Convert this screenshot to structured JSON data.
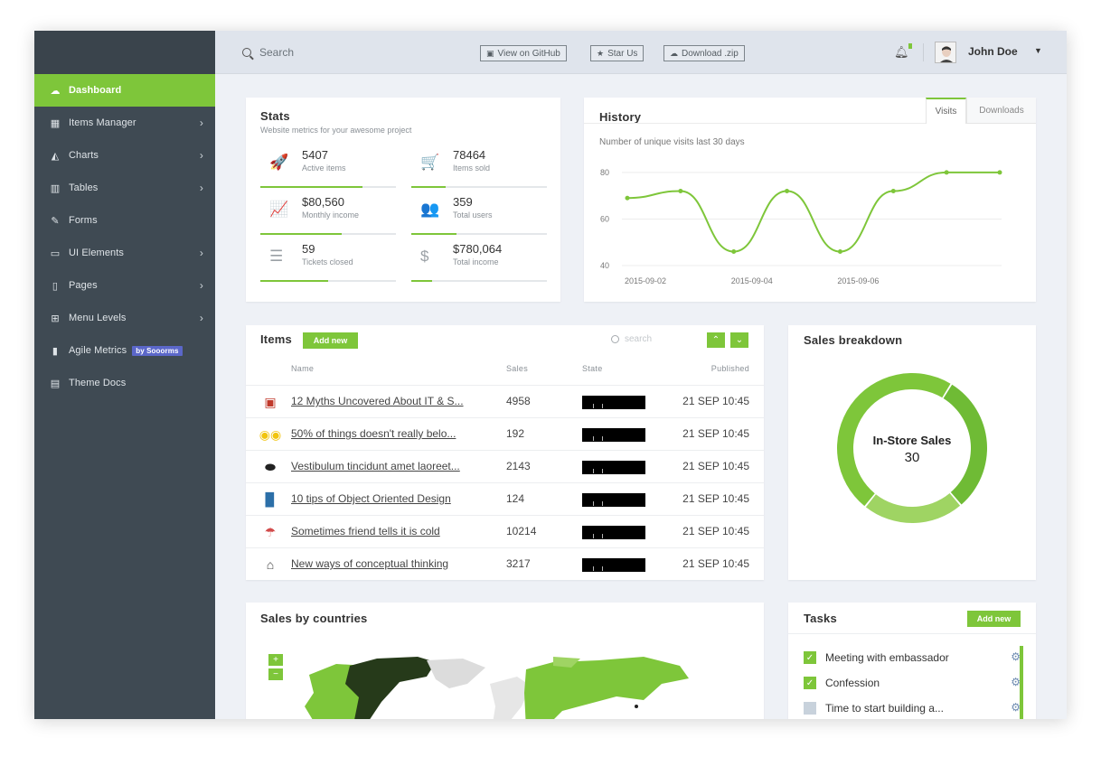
{
  "sidebar": {
    "items": [
      {
        "label": "Dashboard",
        "icon": "dashboard-icon",
        "glyph": "☁",
        "active": true,
        "chevron": ""
      },
      {
        "label": "Items Manager",
        "icon": "grid-icon",
        "glyph": "▦",
        "chevron": "›"
      },
      {
        "label": "Charts",
        "icon": "area-chart-icon",
        "glyph": "◭",
        "chevron": "›"
      },
      {
        "label": "Tables",
        "icon": "table-icon",
        "glyph": "▥",
        "chevron": "›"
      },
      {
        "label": "Forms",
        "icon": "pencil-square-icon",
        "glyph": "✎",
        "chevron": ""
      },
      {
        "label": "UI Elements",
        "icon": "desktop-icon",
        "glyph": "▭",
        "chevron": "›"
      },
      {
        "label": "Pages",
        "icon": "file-icon",
        "glyph": "▯",
        "chevron": "›"
      },
      {
        "label": "Menu Levels",
        "icon": "sitemap-icon",
        "glyph": "⊞",
        "chevron": "›"
      },
      {
        "label": "Agile Metrics",
        "icon": "bar-chart-icon",
        "glyph": "▮",
        "badge": "by Sooorms",
        "chevron": ""
      },
      {
        "label": "Theme Docs",
        "icon": "book-icon",
        "glyph": "▤",
        "chevron": ""
      }
    ]
  },
  "topbar": {
    "search_placeholder": "Search",
    "buttons": [
      {
        "label": "View on GitHub",
        "icon": "github-icon",
        "glyph": "▣"
      },
      {
        "label": "Star Us",
        "icon": "star-icon",
        "glyph": "★"
      },
      {
        "label": "Download .zip",
        "icon": "cloud-download-icon",
        "glyph": "☁"
      }
    ],
    "user_name": "John Doe"
  },
  "stats": {
    "title": "Stats",
    "subtitle": "Website metrics for your awesome project",
    "items": [
      {
        "value": "5407",
        "label": "Active items",
        "icon": "rocket-icon",
        "glyph": "🚀",
        "progress": 0.75
      },
      {
        "value": "78464",
        "label": "Items sold",
        "icon": "cart-icon",
        "glyph": "🛒",
        "progress": 0.25
      },
      {
        "value": "$80,560",
        "label": "Monthly income",
        "icon": "line-chart-icon",
        "glyph": "📈",
        "progress": 0.6
      },
      {
        "value": "359",
        "label": "Total users",
        "icon": "users-icon",
        "glyph": "👥",
        "progress": 0.33
      },
      {
        "value": "59",
        "label": "Tickets closed",
        "icon": "list-icon",
        "glyph": "☰",
        "progress": 0.5
      },
      {
        "value": "$780,064",
        "label": "Total income",
        "icon": "dollar-icon",
        "glyph": "$",
        "progress": 0.15
      }
    ]
  },
  "history": {
    "title": "History",
    "tabs": [
      "Visits",
      "Downloads"
    ],
    "subtitle": "Number of unique visits last 30 days"
  },
  "chart_data": {
    "type": "line",
    "title": "Number of unique visits last 30 days",
    "x": [
      "2015-09-02",
      "2015-09-03",
      "2015-09-04",
      "2015-09-05",
      "2015-09-06",
      "2015-09-07",
      "2015-09-08",
      "2015-09-09"
    ],
    "x_ticks": [
      "2015-09-02",
      "2015-09-04",
      "2015-09-06"
    ],
    "series": [
      {
        "values": [
          69,
          72,
          46,
          72,
          46,
          72,
          80,
          80
        ]
      }
    ],
    "y_ticks": [
      40,
      60,
      80
    ],
    "ylim": [
      40,
      85
    ],
    "color": "#7ec63a",
    "grid": true
  },
  "items": {
    "title": "Items",
    "add_label": "Add new",
    "search_placeholder": "search",
    "columns": {
      "name": "Name",
      "sales": "Sales",
      "state": "State",
      "published": "Published"
    },
    "rows": [
      {
        "name": "12 Myths Uncovered About IT & S...",
        "sales": "4958",
        "published": "21 SEP 10:45",
        "icon": "app-thumbnail-icon",
        "glyph": "▣",
        "color": "#c0392b"
      },
      {
        "name": "50% of things doesn't really belo...",
        "sales": "192",
        "published": "21 SEP 10:45",
        "icon": "glasses-icon",
        "glyph": "◉◉",
        "color": "#f1c40f"
      },
      {
        "name": "Vestibulum tincidunt amet laoreet...",
        "sales": "2143",
        "published": "21 SEP 10:45",
        "icon": "badge-icon",
        "glyph": "⬬",
        "color": "#222222"
      },
      {
        "name": "10 tips of Object Oriented Design",
        "sales": "124",
        "published": "21 SEP 10:45",
        "icon": "book-cover-icon",
        "glyph": "▉",
        "color": "#2c6fa8"
      },
      {
        "name": "Sometimes friend tells it is cold",
        "sales": "10214",
        "published": "21 SEP 10:45",
        "icon": "umbrella-icon",
        "glyph": "☂",
        "color": "#d24b4b"
      },
      {
        "name": "New ways of conceptual thinking",
        "sales": "3217",
        "published": "21 SEP 10:45",
        "icon": "house-icon",
        "glyph": "⌂",
        "color": "#444444"
      }
    ]
  },
  "breakdown": {
    "title": "Sales breakdown",
    "center_label": "In-Store Sales",
    "center_value": "30",
    "segments": [
      {
        "value": 30,
        "color": "#6fbb35"
      },
      {
        "value": 22,
        "color": "#9fd463"
      },
      {
        "value": 48,
        "color": "#7ec63a"
      }
    ]
  },
  "countries": {
    "title": "Sales by countries",
    "zoom_in": "+",
    "zoom_out": "−"
  },
  "tasks": {
    "title": "Tasks",
    "add_label": "Add new",
    "items": [
      {
        "label": "Meeting with embassador",
        "done": true,
        "check": "✓"
      },
      {
        "label": "Confession",
        "done": true,
        "check": "✓"
      },
      {
        "label": "Time to start building a...",
        "done": false,
        "check": ""
      }
    ]
  }
}
